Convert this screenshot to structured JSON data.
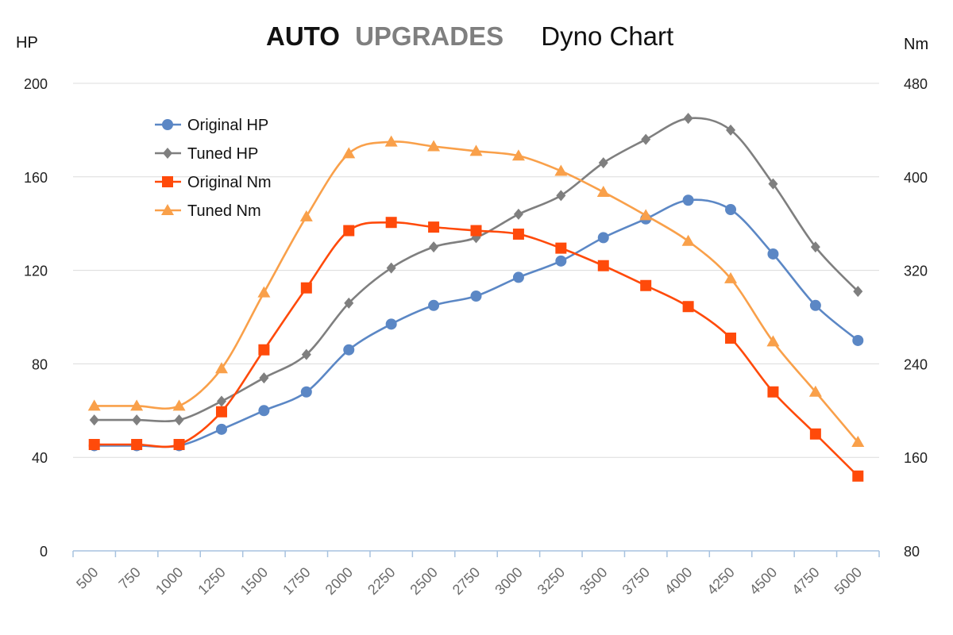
{
  "brand": {
    "auto": "AUTO",
    "upgrades": "UPGRADES",
    "subtitle": "Dyno Chart"
  },
  "colors": {
    "original_hp": "#5b87c5",
    "tuned_hp": "#7f7f7f",
    "original_nm": "#ff4a0a",
    "tuned_nm": "#f9a04a",
    "grid": "#dcdcdc",
    "axis": "#a7c2df"
  },
  "chart_data": {
    "type": "line",
    "title": "AUTO UPGRADES Dyno Chart",
    "x": [
      500,
      750,
      1000,
      1250,
      1500,
      1750,
      2000,
      2250,
      2500,
      2750,
      3000,
      3250,
      3500,
      3750,
      4000,
      4250,
      4500,
      4750,
      5000
    ],
    "x_tick_labels": [
      "500",
      "750",
      "1000",
      "1250",
      "1500",
      "1750",
      "2000",
      "2250",
      "2500",
      "2750",
      "3000",
      "3250",
      "3500",
      "3750",
      "4000",
      "4250",
      "4500",
      "4750",
      "5000"
    ],
    "y_left": {
      "label": "HP",
      "range": [
        0,
        200
      ],
      "ticks": [
        "0",
        "40",
        "80",
        "120",
        "160",
        "200"
      ]
    },
    "y_right": {
      "label": "Nm",
      "range": [
        80,
        480
      ],
      "ticks": [
        "80",
        "160",
        "240",
        "320",
        "400",
        "480"
      ]
    },
    "grid": true,
    "legend_position": "top-left",
    "series": [
      {
        "name": "Original HP",
        "axis": "left",
        "marker": "circle",
        "color_key": "original_hp",
        "values": [
          45,
          45,
          45,
          52,
          60,
          68,
          86,
          97,
          105,
          109,
          117,
          124,
          134,
          142,
          150,
          146,
          127,
          105,
          90
        ]
      },
      {
        "name": "Tuned HP",
        "axis": "left",
        "marker": "diamond",
        "color_key": "tuned_hp",
        "values": [
          56,
          56,
          56,
          64,
          74,
          84,
          106,
          121,
          130,
          134,
          144,
          152,
          166,
          176,
          185,
          180,
          157,
          130,
          111
        ]
      },
      {
        "name": "Original Nm",
        "axis": "right",
        "marker": "square",
        "color_key": "original_nm",
        "values": [
          171,
          171,
          171,
          199,
          252,
          305,
          354,
          361,
          357,
          354,
          351,
          339,
          324,
          307,
          289,
          262,
          216,
          180,
          144
        ]
      },
      {
        "name": "Tuned Nm",
        "axis": "right",
        "marker": "triangle",
        "color_key": "tuned_nm",
        "values": [
          204,
          204,
          204,
          236,
          301,
          366,
          420,
          430,
          426,
          422,
          418,
          405,
          387,
          367,
          345,
          313,
          259,
          216,
          173
        ]
      }
    ]
  }
}
